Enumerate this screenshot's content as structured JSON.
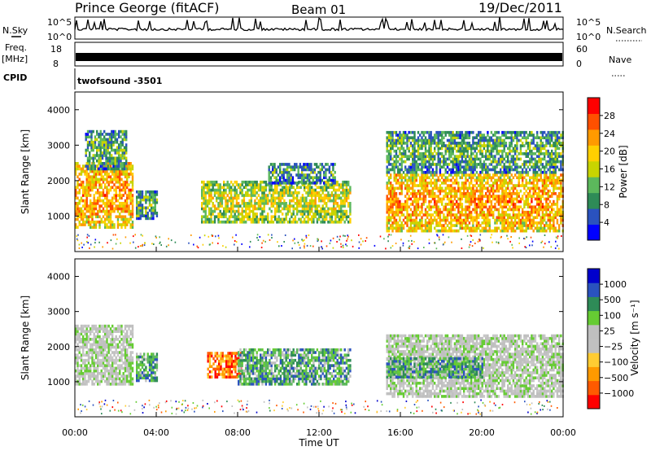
{
  "header": {
    "station": "Prince George (fitACF)",
    "beam": "Beam 01",
    "date": "19/Dec/2011"
  },
  "params": {
    "nsky_label": "N.Sky",
    "nsky_ticks": [
      "10^5",
      "10^0"
    ],
    "nsearch_label": "N.Search",
    "nsearch_ticks": [
      "10^5",
      "10^0"
    ],
    "freq_label": "Freq.",
    "freq_unit": "[MHz]",
    "freq_ticks": [
      "18",
      "8"
    ],
    "nave_label": "Nave",
    "nave_ticks": [
      "60",
      "0"
    ],
    "cpid_label": "CPID",
    "cpid_value": "twofsound -3501"
  },
  "colors": {
    "power": [
      "#0000ff",
      "#2a52be",
      "#2e8b57",
      "#5cb85c",
      "#c8d400",
      "#ffd000",
      "#ff9a00",
      "#ff5000",
      "#ff0000"
    ],
    "velocity": [
      "#ff0000",
      "#ff5a00",
      "#ff9a00",
      "#ffcc33",
      "#c0c0c0",
      "#bfbfbf",
      "#66cc33",
      "#2e8b57",
      "#2a52be",
      "#0000cc"
    ]
  },
  "chart_data": [
    {
      "type": "heatmap",
      "name": "power",
      "xlabel": "Time UT",
      "ylabel": "Slant Range [km]",
      "ylim": [
        0,
        4500
      ],
      "xlim": [
        0,
        24
      ],
      "yticks": [
        "1000",
        "2000",
        "3000",
        "4000"
      ],
      "colorbar": {
        "label": "Power [dB]",
        "ticks": [
          "28",
          "24",
          "20",
          "16",
          "12",
          "8",
          "4"
        ],
        "range": [
          0,
          32
        ]
      },
      "regions": [
        {
          "t0": 0.0,
          "t1": 2.8,
          "r0": 650,
          "r1": 2500,
          "center": 24
        },
        {
          "t0": 0.5,
          "t1": 2.5,
          "r0": 2300,
          "r1": 3400,
          "center": 12
        },
        {
          "t0": 3.0,
          "t1": 4.0,
          "r0": 900,
          "r1": 1700,
          "center": 12
        },
        {
          "t0": 6.2,
          "t1": 13.5,
          "r0": 800,
          "r1": 2000,
          "center": 18
        },
        {
          "t0": 9.5,
          "t1": 12.8,
          "r0": 1900,
          "r1": 2500,
          "center": 10
        },
        {
          "t0": 15.3,
          "t1": 24.0,
          "r0": 550,
          "r1": 2200,
          "center": 24
        },
        {
          "t0": 15.3,
          "t1": 24.0,
          "r0": 2200,
          "r1": 3400,
          "center": 12
        }
      ]
    },
    {
      "type": "heatmap",
      "name": "velocity",
      "xlabel": "Time UT",
      "ylabel": "Slant Range [km]",
      "ylim": [
        0,
        4500
      ],
      "xlim": [
        0,
        24
      ],
      "yticks": [
        "1000",
        "2000",
        "3000",
        "4000"
      ],
      "xticks": [
        "00:00",
        "04:00",
        "08:00",
        "12:00",
        "16:00",
        "20:00",
        "00:00"
      ],
      "colorbar": {
        "label": "Velocity [m s⁻¹]",
        "ticks": [
          "1000",
          "500",
          "100",
          "25",
          "−25",
          "−100",
          "−500",
          "−1000"
        ],
        "range": [
          -1000,
          1000
        ]
      },
      "regions": [
        {
          "t0": 0.0,
          "t1": 2.8,
          "r0": 900,
          "r1": 2600,
          "class": "gray"
        },
        {
          "t0": 3.0,
          "t1": 4.0,
          "r0": 1000,
          "r1": 1800,
          "class": "green"
        },
        {
          "t0": 6.5,
          "t1": 8.2,
          "r0": 1100,
          "r1": 1800,
          "class": "red"
        },
        {
          "t0": 8.0,
          "t1": 13.5,
          "r0": 900,
          "r1": 1900,
          "class": "green"
        },
        {
          "t0": 15.3,
          "t1": 24.0,
          "r0": 550,
          "r1": 2300,
          "class": "gray"
        },
        {
          "t0": 15.3,
          "t1": 20.0,
          "r0": 1100,
          "r1": 1700,
          "class": "green"
        }
      ]
    }
  ]
}
